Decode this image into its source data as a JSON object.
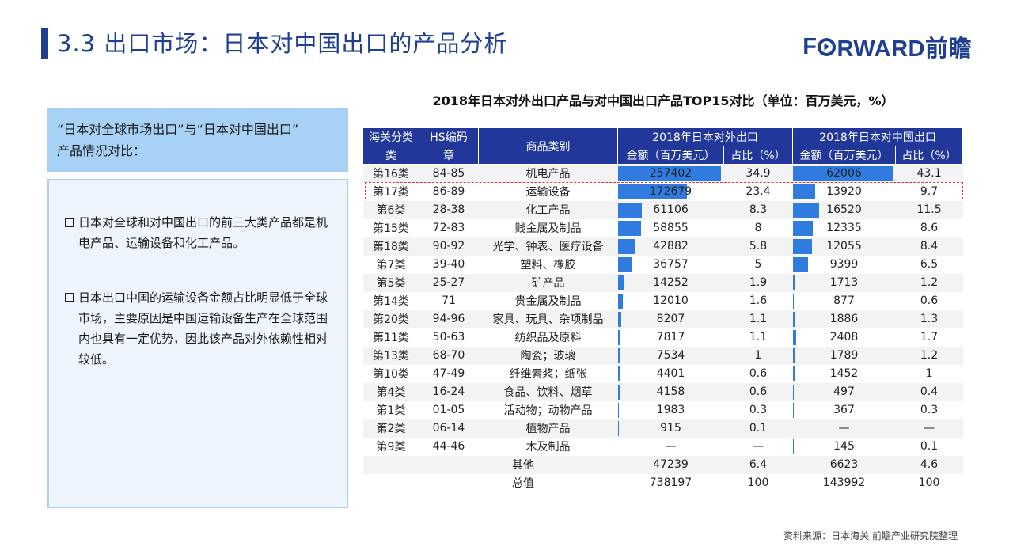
{
  "header": {
    "title": "3.3 出口市场：日本对中国出口的产品分析",
    "logo_text_pre": "F",
    "logo_text_post": "RWARD前瞻",
    "brand_color": "#1f3f93"
  },
  "left_panel": {
    "header_line1": "“日本对全球市场出口”与“日本对中国出口”",
    "header_line2": "产品情况对比：",
    "bullets": [
      "日本对全球和对中国出口的前三大类产品都是机电产品、运输设备和化工产品。",
      "日本出口中国的运输设备金额占比明显低于全球市场，主要原因是中国运输设备生产在全球范围内也具有一定优势，因此该产品对外依赖性相对较低。"
    ]
  },
  "table": {
    "title": "2018年日本对外出口产品与对中国出口产品TOP15对比（单位：百万美元，%）",
    "headers": {
      "customs_class_1": "海关分类",
      "customs_class_2": "类",
      "hs_code_1": "HS编码",
      "hs_code_2": "章",
      "category": "商品类别",
      "group_world": "2018年日本对外出口",
      "group_china": "2018年日本对中国出口",
      "amount": "金额（百万美元）",
      "share": "占比（%）"
    },
    "rows": [
      {
        "cls": "第16类",
        "hs": "84-85",
        "cat": "机电产品",
        "w_amt": "257402",
        "w_share": "34.9",
        "c_amt": "62006",
        "c_share": "43.1"
      },
      {
        "cls": "第17类",
        "hs": "86-89",
        "cat": "运输设备",
        "w_amt": "172679",
        "w_share": "23.4",
        "c_amt": "13920",
        "c_share": "9.7"
      },
      {
        "cls": "第6类",
        "hs": "28-38",
        "cat": "化工产品",
        "w_amt": "61106",
        "w_share": "8.3",
        "c_amt": "16520",
        "c_share": "11.5"
      },
      {
        "cls": "第15类",
        "hs": "72-83",
        "cat": "贱金属及制品",
        "w_amt": "58855",
        "w_share": "8",
        "c_amt": "12335",
        "c_share": "8.6"
      },
      {
        "cls": "第18类",
        "hs": "90-92",
        "cat": "光学、钟表、医疗设备",
        "w_amt": "42882",
        "w_share": "5.8",
        "c_amt": "12055",
        "c_share": "8.4"
      },
      {
        "cls": "第7类",
        "hs": "39-40",
        "cat": "塑料、橡胶",
        "w_amt": "36757",
        "w_share": "5",
        "c_amt": "9399",
        "c_share": "6.5"
      },
      {
        "cls": "第5类",
        "hs": "25-27",
        "cat": "矿产品",
        "w_amt": "14252",
        "w_share": "1.9",
        "c_amt": "1713",
        "c_share": "1.2"
      },
      {
        "cls": "第14类",
        "hs": "71",
        "cat": "贵金属及制品",
        "w_amt": "12010",
        "w_share": "1.6",
        "c_amt": "877",
        "c_share": "0.6"
      },
      {
        "cls": "第20类",
        "hs": "94-96",
        "cat": "家具、玩具、杂项制品",
        "w_amt": "8207",
        "w_share": "1.1",
        "c_amt": "1886",
        "c_share": "1.3"
      },
      {
        "cls": "第11类",
        "hs": "50-63",
        "cat": "纺织品及原料",
        "w_amt": "7817",
        "w_share": "1.1",
        "c_amt": "2408",
        "c_share": "1.7"
      },
      {
        "cls": "第13类",
        "hs": "68-70",
        "cat": "陶瓷；玻璃",
        "w_amt": "7534",
        "w_share": "1",
        "c_amt": "1789",
        "c_share": "1.2"
      },
      {
        "cls": "第10类",
        "hs": "47-49",
        "cat": "纤维素浆；纸张",
        "w_amt": "4401",
        "w_share": "0.6",
        "c_amt": "1452",
        "c_share": "1"
      },
      {
        "cls": "第4类",
        "hs": "16-24",
        "cat": "食品、饮料、烟草",
        "w_amt": "4158",
        "w_share": "0.6",
        "c_amt": "497",
        "c_share": "0.4"
      },
      {
        "cls": "第1类",
        "hs": "01-05",
        "cat": "活动物；动物产品",
        "w_amt": "1983",
        "w_share": "0.3",
        "c_amt": "367",
        "c_share": "0.3"
      },
      {
        "cls": "第2类",
        "hs": "06-14",
        "cat": "植物产品",
        "w_amt": "915",
        "w_share": "0.1",
        "c_amt": "—",
        "c_share": "—"
      },
      {
        "cls": "第9类",
        "hs": "44-46",
        "cat": "木及制品",
        "w_amt": "—",
        "w_share": "—",
        "c_amt": "145",
        "c_share": "0.1"
      }
    ],
    "other": {
      "label": "其他",
      "w_amt": "47239",
      "w_share": "6.4",
      "c_amt": "6623",
      "c_share": "4.6"
    },
    "total": {
      "label": "总值",
      "w_amt": "738197",
      "w_share": "100",
      "c_amt": "143992",
      "c_share": "100"
    },
    "bar_color": "#2f7be0",
    "highlight_color": "#e03c3c"
  },
  "footer": {
    "source": "资料来源：日本海关  前瞻产业研究院整理"
  }
}
